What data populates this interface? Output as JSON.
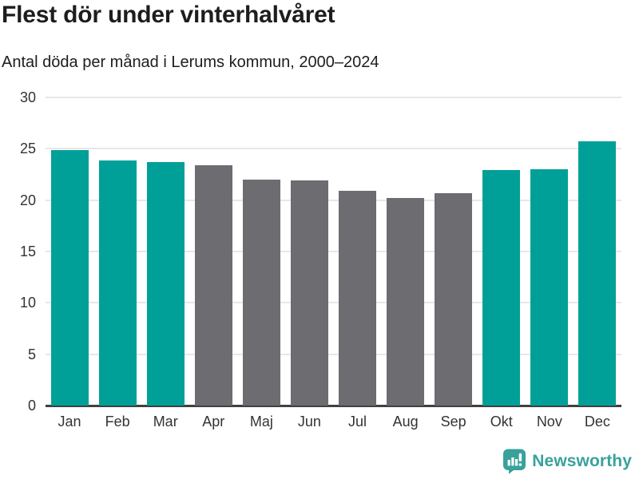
{
  "header": {
    "title": "Flest dör under vinterhalvåret",
    "subtitle": "Antal döda per månad i Lerums kommun, 2000–2024"
  },
  "chart_data": {
    "type": "bar",
    "title": "Flest dör under vinterhalvåret",
    "subtitle": "Antal döda per månad i Lerums kommun, 2000–2024",
    "categories": [
      "Jan",
      "Feb",
      "Mar",
      "Apr",
      "Maj",
      "Jun",
      "Jul",
      "Aug",
      "Sep",
      "Okt",
      "Nov",
      "Dec"
    ],
    "values": [
      24.9,
      23.9,
      23.7,
      23.4,
      22.0,
      21.9,
      20.9,
      20.2,
      20.7,
      22.9,
      23.0,
      25.7
    ],
    "highlighted": [
      true,
      true,
      true,
      false,
      false,
      false,
      false,
      false,
      false,
      true,
      true,
      true
    ],
    "xlabel": "",
    "ylabel": "",
    "ylim": [
      0,
      30
    ],
    "yticks": [
      0,
      5,
      10,
      15,
      20,
      25,
      30
    ],
    "grid": "horizontal",
    "legend": "none",
    "colors": {
      "highlight": "#00a099",
      "default": "#6c6c71",
      "gridline": "#e7e7e7",
      "axis_line": "#404040",
      "tick_label": "#333333"
    }
  },
  "footer": {
    "brand": "Newsworthy",
    "brand_color": "#38a29b",
    "logo_icon": "newsworthy-speech-bubble-chart-icon"
  }
}
